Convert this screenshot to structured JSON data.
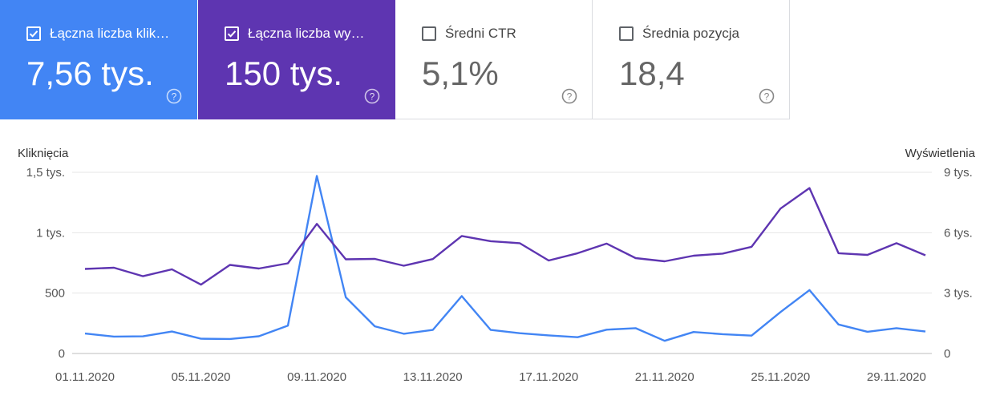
{
  "metrics": [
    {
      "label": "Łączna liczba klik…",
      "value": "7,56 tys.",
      "checked": true,
      "color": "#4285f4",
      "icon": "help-icon"
    },
    {
      "label": "Łączna liczba wy…",
      "value": "150 tys.",
      "checked": true,
      "color": "#5e35b1",
      "icon": "help-icon"
    },
    {
      "label": "Średni CTR",
      "value": "5,1%",
      "checked": false,
      "icon": "help-icon"
    },
    {
      "label": "Średnia pozycja",
      "value": "18,4",
      "checked": false,
      "icon": "help-icon"
    }
  ],
  "chart_data": {
    "type": "line",
    "y_left_label": "Kliknięcia",
    "y_right_label": "Wyświetlenia",
    "x": [
      "01.11.2020",
      "02.11.2020",
      "03.11.2020",
      "04.11.2020",
      "05.11.2020",
      "06.11.2020",
      "07.11.2020",
      "08.11.2020",
      "09.11.2020",
      "10.11.2020",
      "11.11.2020",
      "12.11.2020",
      "13.11.2020",
      "14.11.2020",
      "15.11.2020",
      "16.11.2020",
      "17.11.2020",
      "18.11.2020",
      "19.11.2020",
      "20.11.2020",
      "21.11.2020",
      "22.11.2020",
      "23.11.2020",
      "24.11.2020",
      "25.11.2020",
      "26.11.2020",
      "27.11.2020",
      "28.11.2020",
      "29.11.2020",
      "30.11.2020"
    ],
    "x_tick_labels": [
      "01.11.2020",
      "05.11.2020",
      "09.11.2020",
      "13.11.2020",
      "17.11.2020",
      "21.11.2020",
      "25.11.2020",
      "29.11.2020"
    ],
    "y_left_ticks": [
      "0",
      "500",
      "1 tys.",
      "1,5 tys."
    ],
    "y_left_lim": [
      0,
      1500
    ],
    "y_right_ticks": [
      "0",
      "3 tys.",
      "6 tys.",
      "9 tys."
    ],
    "y_right_lim": [
      0,
      9000
    ],
    "series": [
      {
        "axis": "left",
        "color": "#4285f4",
        "values": [
          165,
          140,
          142,
          182,
          122,
          120,
          143,
          230,
          1470,
          465,
          225,
          163,
          195,
          475,
          195,
          168,
          150,
          135,
          197,
          210,
          105,
          178,
          160,
          148,
          343,
          525,
          240,
          180,
          210,
          182
        ]
      },
      {
        "axis": "right",
        "color": "#5e35b1",
        "values": [
          4200,
          4260,
          3840,
          4180,
          3420,
          4400,
          4220,
          4480,
          6440,
          4680,
          4700,
          4360,
          4690,
          5840,
          5580,
          5480,
          4620,
          4980,
          5460,
          4740,
          4580,
          4860,
          4960,
          5300,
          7200,
          8220,
          4980,
          4900,
          5480,
          4880
        ]
      }
    ],
    "grid": true
  }
}
